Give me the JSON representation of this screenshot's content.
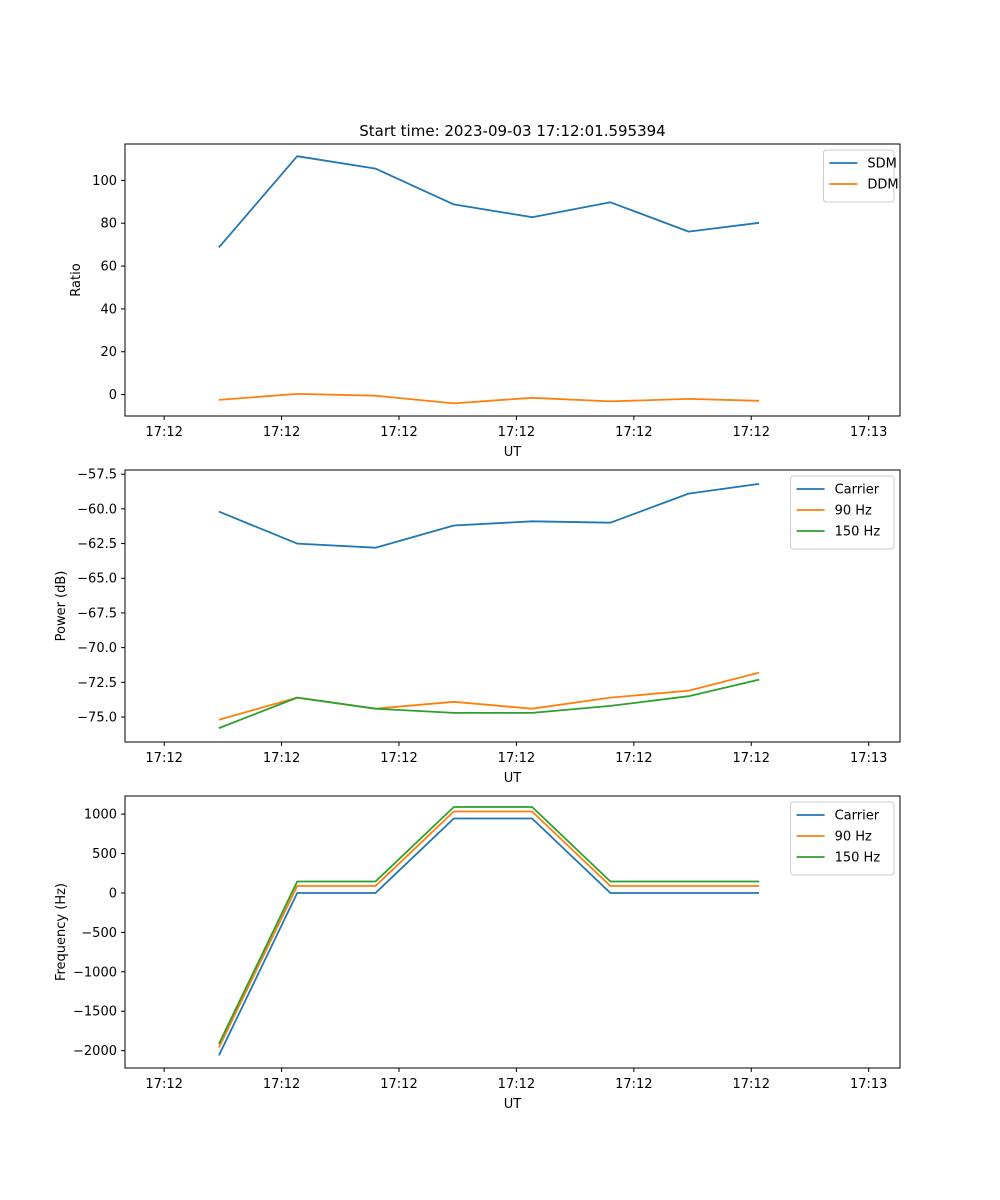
{
  "title": "Start time: 2023-09-03 17:12:01.595394",
  "colors": {
    "blue": "#1f77b4",
    "orange": "#ff7f0e",
    "green": "#2ca02c"
  },
  "chart_data": [
    {
      "type": "line",
      "title": "Start time: 2023-09-03 17:12:01.595394",
      "xlabel": "UT",
      "ylabel": "Ratio",
      "ylim": [
        -10,
        117
      ],
      "yticks": [
        0,
        20,
        40,
        60,
        80,
        100
      ],
      "ytick_labels": [
        "0",
        "20",
        "40",
        "60",
        "80",
        "100"
      ],
      "xlim": [
        -0.5,
        9.4
      ],
      "xticks": [
        0,
        1.5,
        3,
        4.5,
        6,
        7.5,
        9
      ],
      "xtick_labels": [
        "17:12",
        "17:12",
        "17:12",
        "17:12",
        "17:12",
        "17:12",
        "17:13"
      ],
      "x": [
        0.7,
        1.7,
        2.7,
        3.7,
        4.7,
        5.7,
        6.7,
        7.6
      ],
      "legend_position": "top-right",
      "series": [
        {
          "name": "SDM",
          "color": "#1f77b4",
          "values": [
            68.7,
            111.3,
            105.5,
            88.8,
            82.8,
            89.8,
            76.1,
            80.2
          ]
        },
        {
          "name": "DDM",
          "color": "#ff7f0e",
          "values": [
            -2.5,
            0.3,
            -0.5,
            -4.1,
            -1.5,
            -3.2,
            -2.0,
            -2.9
          ]
        }
      ]
    },
    {
      "type": "line",
      "title": "",
      "xlabel": "UT",
      "ylabel": "Power (dB)",
      "ylim": [
        -76.8,
        -57.2
      ],
      "yticks": [
        -75.0,
        -72.5,
        -70.0,
        -67.5,
        -65.0,
        -62.5,
        -60.0,
        -57.5
      ],
      "ytick_labels": [
        "−75.0",
        "−72.5",
        "−70.0",
        "−67.5",
        "−65.0",
        "−62.5",
        "−60.0",
        "−57.5"
      ],
      "xlim": [
        -0.5,
        9.4
      ],
      "xticks": [
        0,
        1.5,
        3,
        4.5,
        6,
        7.5,
        9
      ],
      "xtick_labels": [
        "17:12",
        "17:12",
        "17:12",
        "17:12",
        "17:12",
        "17:12",
        "17:13"
      ],
      "x": [
        0.7,
        1.7,
        2.7,
        3.7,
        4.7,
        5.7,
        6.7,
        7.6
      ],
      "legend_position": "top-right",
      "series": [
        {
          "name": "Carrier",
          "color": "#1f77b4",
          "values": [
            -60.2,
            -62.5,
            -62.8,
            -61.2,
            -60.9,
            -61.0,
            -58.9,
            -58.2
          ]
        },
        {
          "name": "90 Hz",
          "color": "#ff7f0e",
          "values": [
            -75.2,
            -73.6,
            -74.4,
            -73.9,
            -74.4,
            -73.6,
            -73.1,
            -71.8
          ]
        },
        {
          "name": "150 Hz",
          "color": "#2ca02c",
          "values": [
            -75.8,
            -73.6,
            -74.4,
            -74.7,
            -74.7,
            -74.2,
            -73.5,
            -72.3
          ]
        }
      ]
    },
    {
      "type": "line",
      "title": "",
      "xlabel": "UT",
      "ylabel": "Frequency (Hz)",
      "ylim": [
        -2220,
        1230
      ],
      "yticks": [
        -2000,
        -1500,
        -1000,
        -500,
        0,
        500,
        1000
      ],
      "ytick_labels": [
        "−2000",
        "−1500",
        "−1000",
        "−500",
        "0",
        "500",
        "1000"
      ],
      "xlim": [
        -0.5,
        9.4
      ],
      "xticks": [
        0,
        1.5,
        3,
        4.5,
        6,
        7.5,
        9
      ],
      "xtick_labels": [
        "17:12",
        "17:12",
        "17:12",
        "17:12",
        "17:12",
        "17:12",
        "17:13"
      ],
      "x": [
        0.7,
        1.7,
        2.7,
        3.7,
        4.7,
        5.7,
        6.7,
        7.6
      ],
      "legend_position": "top-right",
      "series": [
        {
          "name": "Carrier",
          "color": "#1f77b4",
          "values": [
            -2060,
            0,
            0,
            945,
            945,
            0,
            0,
            0
          ]
        },
        {
          "name": "90 Hz",
          "color": "#ff7f0e",
          "values": [
            -1960,
            88,
            88,
            1033,
            1033,
            88,
            88,
            88
          ]
        },
        {
          "name": "150 Hz",
          "color": "#2ca02c",
          "values": [
            -1915,
            145,
            145,
            1090,
            1090,
            145,
            145,
            145
          ]
        }
      ]
    }
  ]
}
